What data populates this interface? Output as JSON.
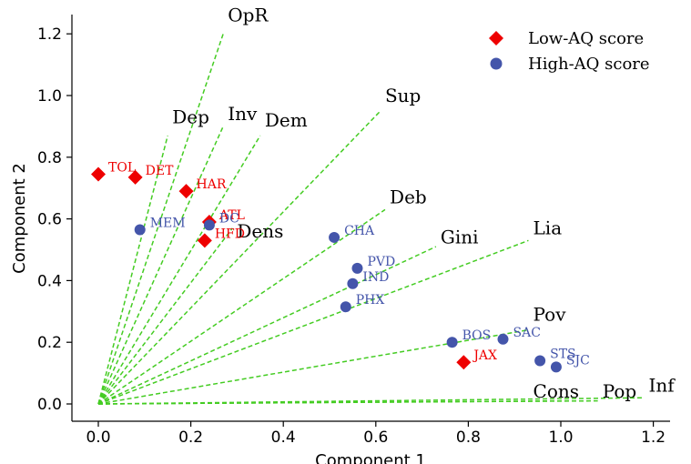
{
  "chart_data": {
    "type": "scatter",
    "xlabel": "Component 1",
    "ylabel": "Component 2",
    "xlim": [
      -0.05,
      1.23
    ],
    "ylim": [
      -0.06,
      1.26
    ],
    "x_ticks": [
      0.0,
      0.2,
      0.4,
      0.6,
      0.8,
      1.0,
      1.2
    ],
    "y_ticks": [
      0.0,
      0.2,
      0.4,
      0.6,
      0.8,
      1.0,
      1.2
    ],
    "x_tick_labels": [
      "0.0",
      "0.2",
      "0.4",
      "0.6",
      "0.8",
      "1.0",
      "1.2"
    ],
    "y_tick_labels": [
      "0.0",
      "0.2",
      "0.4",
      "0.6",
      "0.8",
      "1.0",
      "1.2"
    ],
    "grid": false,
    "legend_position": "top-right",
    "colors": {
      "vectors": "#44cc22",
      "low": "#ee0000",
      "high": "#4455aa"
    },
    "vectors": [
      {
        "label": "OpR",
        "end": [
          0.27,
          1.2
        ],
        "label_at": [
          0.28,
          1.24
        ]
      },
      {
        "label": "Dep",
        "end": [
          0.15,
          0.87
        ],
        "label_at": [
          0.16,
          0.91
        ]
      },
      {
        "label": "Inv",
        "end": [
          0.27,
          0.9
        ],
        "label_at": [
          0.28,
          0.92
        ]
      },
      {
        "label": "Dem",
        "end": [
          0.35,
          0.87
        ],
        "label_at": [
          0.36,
          0.9
        ]
      },
      {
        "label": "Sup",
        "end": [
          0.61,
          0.95
        ],
        "label_at": [
          0.62,
          0.98
        ]
      },
      {
        "label": "Deb",
        "end": [
          0.62,
          0.63
        ],
        "label_at": [
          0.63,
          0.65
        ]
      },
      {
        "label": "Dens",
        "end": [
          0.29,
          0.57
        ],
        "label_at": [
          0.3,
          0.54
        ]
      },
      {
        "label": "Gini",
        "end": [
          0.73,
          0.51
        ],
        "label_at": [
          0.74,
          0.52
        ]
      },
      {
        "label": "Lia",
        "end": [
          0.93,
          0.53
        ],
        "label_at": [
          0.94,
          0.55
        ]
      },
      {
        "label": "Pov",
        "end": [
          0.93,
          0.24
        ],
        "label_at": [
          0.94,
          0.27
        ]
      },
      {
        "label": "Cons",
        "end": [
          1.02,
          0.01
        ],
        "label_at": [
          0.94,
          0.02
        ]
      },
      {
        "label": "Pop",
        "end": [
          1.08,
          0.01
        ],
        "label_at": [
          1.09,
          0.02
        ]
      },
      {
        "label": "Inf",
        "end": [
          1.18,
          0.02
        ],
        "label_at": [
          1.19,
          0.04
        ]
      }
    ],
    "series": [
      {
        "name": "Low-AQ score",
        "marker": "diamond",
        "points": [
          {
            "label": "TOL",
            "x": 0.0,
            "y": 0.745
          },
          {
            "label": "DET",
            "x": 0.08,
            "y": 0.735
          },
          {
            "label": "HAR",
            "x": 0.19,
            "y": 0.69
          },
          {
            "label": "ATL",
            "x": 0.24,
            "y": 0.59
          },
          {
            "label": "HFD",
            "x": 0.23,
            "y": 0.53
          },
          {
            "label": "JAX",
            "x": 0.79,
            "y": 0.135
          }
        ]
      },
      {
        "name": "High-AQ score",
        "marker": "circle",
        "points": [
          {
            "label": "MEM",
            "x": 0.09,
            "y": 0.565
          },
          {
            "label": "DC",
            "x": 0.24,
            "y": 0.58
          },
          {
            "label": "CHA",
            "x": 0.51,
            "y": 0.54
          },
          {
            "label": "PVD",
            "x": 0.56,
            "y": 0.44
          },
          {
            "label": "IND",
            "x": 0.55,
            "y": 0.39
          },
          {
            "label": "PHX",
            "x": 0.535,
            "y": 0.315
          },
          {
            "label": "BOS",
            "x": 0.765,
            "y": 0.2
          },
          {
            "label": "SAC",
            "x": 0.875,
            "y": 0.21
          },
          {
            "label": "STS",
            "x": 0.955,
            "y": 0.14
          },
          {
            "label": "SJC",
            "x": 0.99,
            "y": 0.12
          }
        ]
      }
    ]
  }
}
